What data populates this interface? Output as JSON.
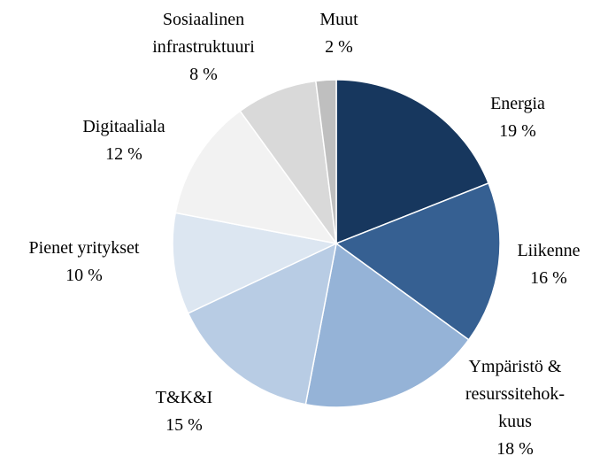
{
  "chart_data": {
    "type": "pie",
    "categories": [
      "Energia",
      "Liikenne",
      "Ympäristö &\nresurssitehok-\nkuus",
      "T&K&I",
      "Pienet yritykset",
      "Digitaaliala",
      "Sosiaalinen\ninfrastruktuuri",
      "Muut"
    ],
    "values": [
      19,
      16,
      18,
      15,
      10,
      12,
      8,
      2
    ],
    "value_labels": [
      "19 %",
      "16 %",
      "18 %",
      "15 %",
      "10 %",
      "12 %",
      "8 %",
      "2 %"
    ],
    "colors": [
      "#17375e",
      "#366092",
      "#95b3d7",
      "#b8cce4",
      "#dce6f1",
      "#f2f2f2",
      "#d9d9d9",
      "#bfbfbf"
    ]
  }
}
